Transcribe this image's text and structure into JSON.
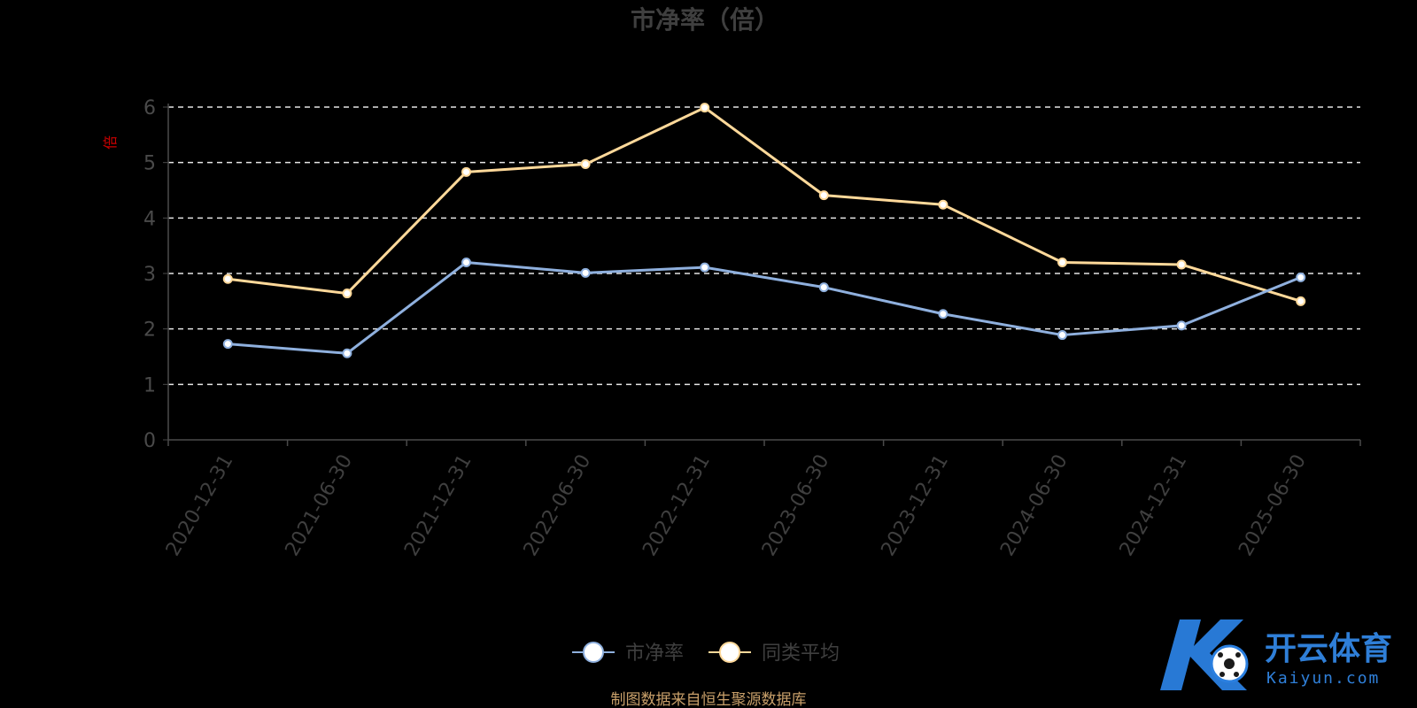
{
  "chart_data": {
    "type": "line",
    "title": "市净率（倍）",
    "y_unit": "倍",
    "ylim": [
      0,
      6
    ],
    "yticks": [
      "0",
      "1",
      "2",
      "3",
      "4",
      "5",
      "6"
    ],
    "categories": [
      "2020-12-31",
      "2021-06-30",
      "2021-12-31",
      "2022-06-30",
      "2022-12-31",
      "2023-06-30",
      "2023-12-31",
      "2024-06-30",
      "2024-12-31",
      "2025-06-30"
    ],
    "grid": true,
    "legend_position": "bottom-center",
    "series": [
      {
        "name": "市净率",
        "color": "#8fb0de",
        "values": [
          1.73,
          1.56,
          3.2,
          3.01,
          3.11,
          2.75,
          2.27,
          1.89,
          2.06,
          2.93
        ]
      },
      {
        "name": "同类平均",
        "color": "#ffd99a",
        "values": [
          2.9,
          2.64,
          4.83,
          4.97,
          5.99,
          4.41,
          4.24,
          3.2,
          3.16,
          2.5
        ]
      }
    ]
  },
  "footer": {
    "source": "制图数据来自恒生聚源数据库"
  },
  "watermark": {
    "brand_cn": "开云体育",
    "brand_en": "Kaiyun.com"
  }
}
